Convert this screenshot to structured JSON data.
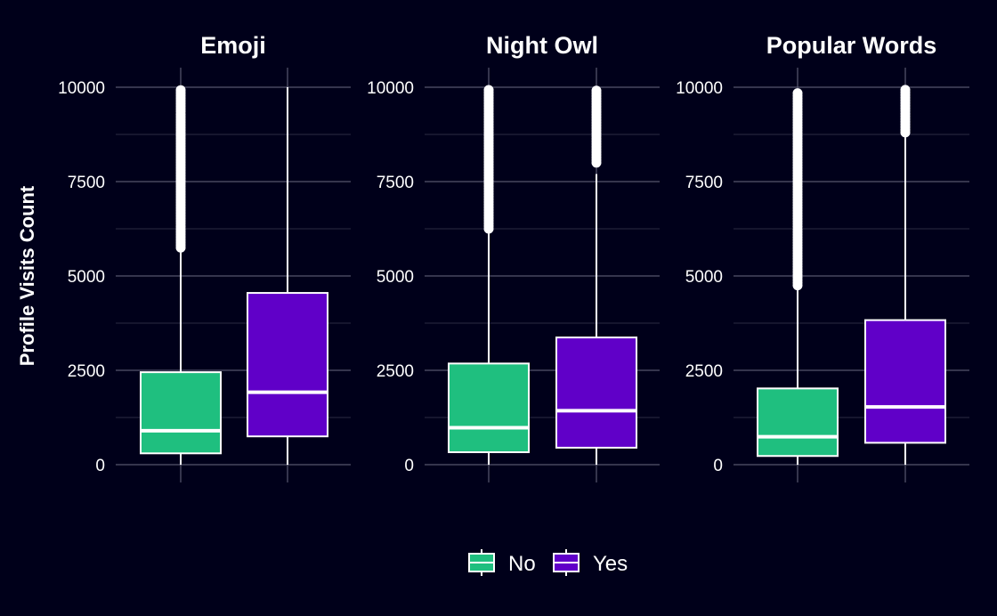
{
  "chart_data": {
    "type": "boxplot",
    "ylabel": "Profile Visits Count",
    "ylim": [
      0,
      10000
    ],
    "y_ticks": [
      0,
      2500,
      5000,
      7500,
      10000
    ],
    "y_tick_labels": [
      "0",
      "2500",
      "5000",
      "7500",
      "10000"
    ],
    "y_minor_ticks": [
      1250,
      3750,
      6250,
      8750
    ],
    "grid": true,
    "legend": {
      "placement": "bottom",
      "entries": [
        {
          "label": "No",
          "color": "#1fbf7f"
        },
        {
          "label": "Yes",
          "color": "#6000c8"
        }
      ]
    },
    "facets": [
      {
        "title": "Emoji",
        "boxes": [
          {
            "group": "No",
            "min": 0,
            "q1": 300,
            "median": 900,
            "q3": 2450,
            "whisker_high": 5700,
            "outliers_from": 5750,
            "outliers_to": 9950
          },
          {
            "group": "Yes",
            "min": 0,
            "q1": 750,
            "median": 1920,
            "q3": 4550,
            "whisker_high": 10000,
            "outliers_from": null,
            "outliers_to": null
          }
        ]
      },
      {
        "title": "Night Owl",
        "boxes": [
          {
            "group": "No",
            "min": 0,
            "q1": 330,
            "median": 980,
            "q3": 2680,
            "whisker_high": 6200,
            "outliers_from": 6250,
            "outliers_to": 9950
          },
          {
            "group": "Yes",
            "min": 0,
            "q1": 450,
            "median": 1430,
            "q3": 3370,
            "whisker_high": 7700,
            "outliers_from": 8000,
            "outliers_to": 9950
          }
        ]
      },
      {
        "title": "Popular Words",
        "boxes": [
          {
            "group": "No",
            "min": 0,
            "q1": 230,
            "median": 740,
            "q3": 2020,
            "whisker_high": 4700,
            "outliers_from": 4750,
            "outliers_to": 9900
          },
          {
            "group": "Yes",
            "min": 0,
            "q1": 580,
            "median": 1530,
            "q3": 3830,
            "whisker_high": 8700,
            "outliers_from": 8800,
            "outliers_to": 9950
          }
        ]
      }
    ]
  }
}
